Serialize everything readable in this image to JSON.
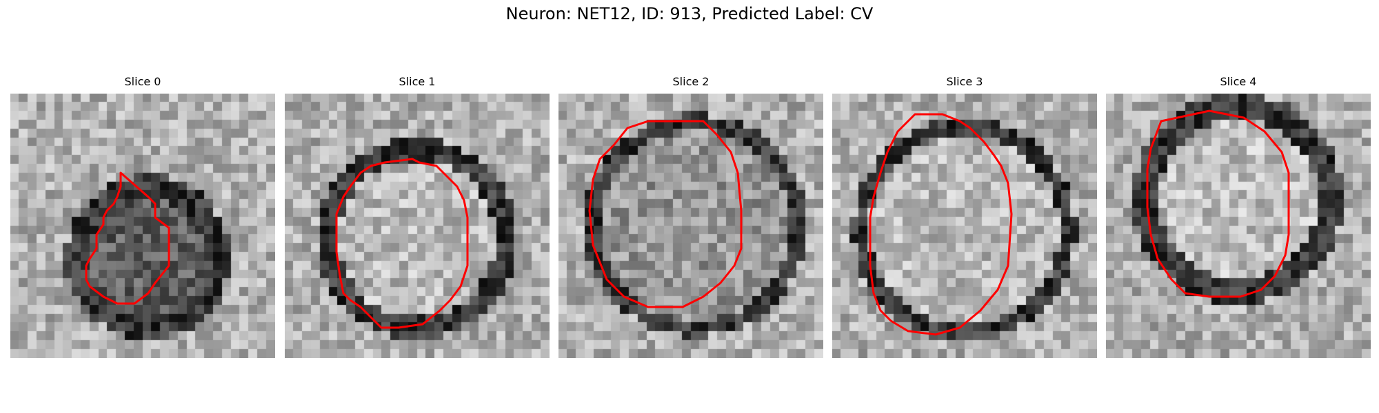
{
  "figure": {
    "title": "Neuron: NET12, ID: 913, Predicted Label: CV",
    "contour_color": "#ff0000",
    "background": "#ffffff"
  },
  "panels": [
    {
      "label": "Slice 0"
    },
    {
      "label": "Slice 1"
    },
    {
      "label": "Slice 2"
    },
    {
      "label": "Slice 3"
    },
    {
      "label": "Slice 4"
    }
  ]
}
